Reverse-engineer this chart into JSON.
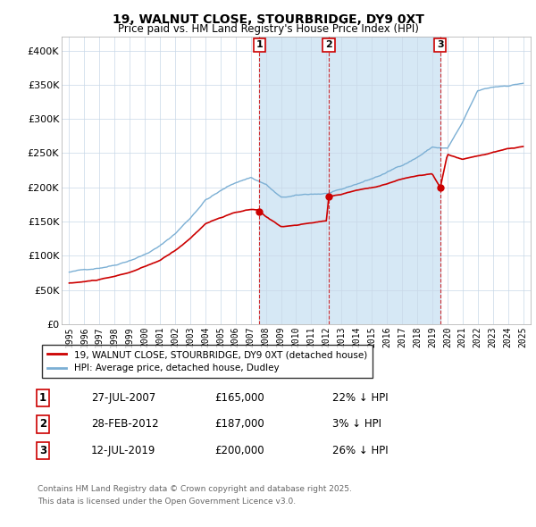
{
  "title1": "19, WALNUT CLOSE, STOURBRIDGE, DY9 0XT",
  "title2": "Price paid vs. HM Land Registry's House Price Index (HPI)",
  "hpi_label": "HPI: Average price, detached house, Dudley",
  "property_label": "19, WALNUT CLOSE, STOURBRIDGE, DY9 0XT (detached house)",
  "footnote1": "Contains HM Land Registry data © Crown copyright and database right 2025.",
  "footnote2": "This data is licensed under the Open Government Licence v3.0.",
  "hpi_color": "#7bafd4",
  "hpi_fill_color": "#d6e8f5",
  "property_color": "#cc0000",
  "vline_color": "#cc0000",
  "transactions": [
    {
      "num": 1,
      "date_label": "27-JUL-2007",
      "price": 165000,
      "hpi_diff": "22% ↓ HPI",
      "x": 2007.57
    },
    {
      "num": 2,
      "date_label": "28-FEB-2012",
      "price": 187000,
      "hpi_diff": "3% ↓ HPI",
      "x": 2012.16
    },
    {
      "num": 3,
      "date_label": "12-JUL-2019",
      "price": 200000,
      "hpi_diff": "26% ↓ HPI",
      "x": 2019.53
    }
  ],
  "ylim": [
    0,
    420000
  ],
  "xlim": [
    1994.5,
    2025.5
  ],
  "yticks": [
    0,
    50000,
    100000,
    150000,
    200000,
    250000,
    300000,
    350000,
    400000
  ],
  "ytick_labels": [
    "£0",
    "£50K",
    "£100K",
    "£150K",
    "£200K",
    "£250K",
    "£300K",
    "£350K",
    "£400K"
  ],
  "xticks": [
    1995,
    1996,
    1997,
    1998,
    1999,
    2000,
    2001,
    2002,
    2003,
    2004,
    2005,
    2006,
    2007,
    2008,
    2009,
    2010,
    2011,
    2012,
    2013,
    2014,
    2015,
    2016,
    2017,
    2018,
    2019,
    2020,
    2021,
    2022,
    2023,
    2024,
    2025
  ]
}
